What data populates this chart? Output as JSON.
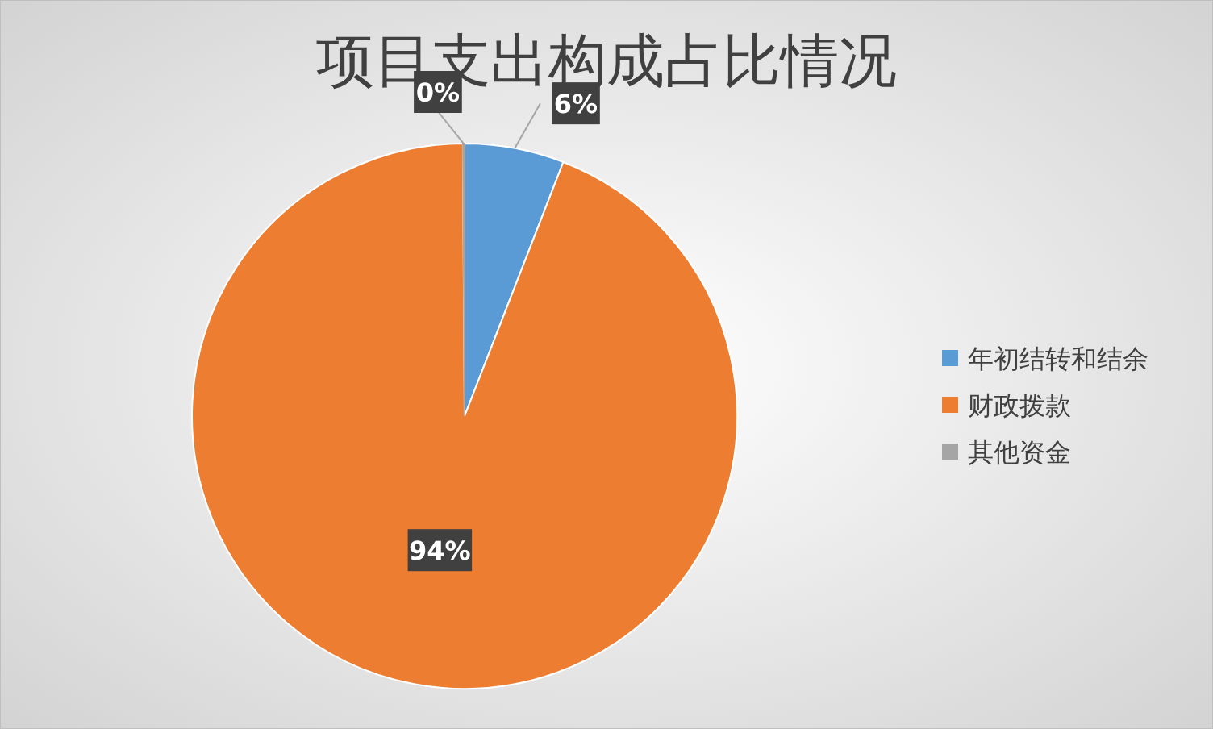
{
  "chart_data": {
    "type": "pie",
    "title": "项目支出构成占比情况",
    "categories": [
      "年初结转和结余",
      "财政拨款",
      "其他资金"
    ],
    "values": [
      5.9,
      94,
      0.1
    ],
    "colors": [
      "#5b9bd5",
      "#ed7d31",
      "#a5a5a5"
    ],
    "value_labels": [
      "6%",
      "94%",
      "0%"
    ],
    "legend": "right"
  }
}
